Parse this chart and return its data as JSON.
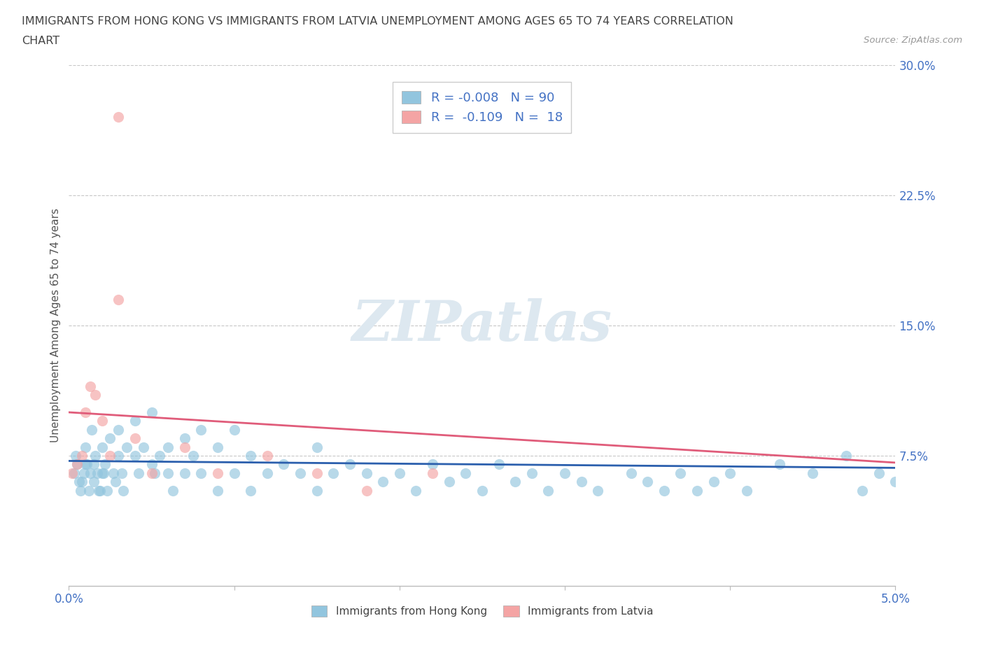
{
  "title_line1": "IMMIGRANTS FROM HONG KONG VS IMMIGRANTS FROM LATVIA UNEMPLOYMENT AMONG AGES 65 TO 74 YEARS CORRELATION",
  "title_line2": "CHART",
  "source": "Source: ZipAtlas.com",
  "ylabel": "Unemployment Among Ages 65 to 74 years",
  "xlim": [
    0.0,
    0.05
  ],
  "ylim": [
    0.0,
    0.3
  ],
  "xtick_positions": [
    0.0,
    0.01,
    0.02,
    0.03,
    0.04,
    0.05
  ],
  "xticklabels": [
    "0.0%",
    "",
    "",
    "",
    "",
    "5.0%"
  ],
  "yticks_right": [
    0.075,
    0.15,
    0.225,
    0.3
  ],
  "yticklabels_right": [
    "7.5%",
    "15.0%",
    "22.5%",
    "30.0%"
  ],
  "hk_R": -0.008,
  "hk_N": 90,
  "lv_R": -0.109,
  "lv_N": 18,
  "hk_color": "#92c5de",
  "lv_color": "#f4a4a4",
  "hk_line_color": "#2b5fad",
  "lv_line_color": "#e05c7a",
  "watermark": "ZIPatlas",
  "background_color": "#ffffff",
  "grid_color": "#c8c8c8",
  "hk_scatter_x": [
    0.0003,
    0.0005,
    0.0007,
    0.0008,
    0.001,
    0.001,
    0.0012,
    0.0013,
    0.0014,
    0.0015,
    0.0015,
    0.0016,
    0.0017,
    0.0018,
    0.002,
    0.002,
    0.0022,
    0.0023,
    0.0025,
    0.0027,
    0.003,
    0.003,
    0.0032,
    0.0033,
    0.0035,
    0.004,
    0.004,
    0.0042,
    0.0045,
    0.005,
    0.005,
    0.0052,
    0.0055,
    0.006,
    0.006,
    0.0063,
    0.007,
    0.007,
    0.0075,
    0.008,
    0.008,
    0.009,
    0.009,
    0.01,
    0.01,
    0.011,
    0.011,
    0.012,
    0.013,
    0.014,
    0.015,
    0.015,
    0.016,
    0.017,
    0.018,
    0.019,
    0.02,
    0.021,
    0.022,
    0.023,
    0.024,
    0.025,
    0.026,
    0.027,
    0.028,
    0.029,
    0.03,
    0.031,
    0.032,
    0.034,
    0.035,
    0.036,
    0.037,
    0.038,
    0.039,
    0.04,
    0.041,
    0.043,
    0.045,
    0.047,
    0.048,
    0.049,
    0.05,
    0.0004,
    0.0006,
    0.0009,
    0.0011,
    0.0019,
    0.0021,
    0.0028
  ],
  "hk_scatter_y": [
    0.065,
    0.07,
    0.055,
    0.06,
    0.08,
    0.07,
    0.055,
    0.065,
    0.09,
    0.07,
    0.06,
    0.075,
    0.065,
    0.055,
    0.08,
    0.065,
    0.07,
    0.055,
    0.085,
    0.065,
    0.09,
    0.075,
    0.065,
    0.055,
    0.08,
    0.095,
    0.075,
    0.065,
    0.08,
    0.1,
    0.07,
    0.065,
    0.075,
    0.08,
    0.065,
    0.055,
    0.085,
    0.065,
    0.075,
    0.09,
    0.065,
    0.08,
    0.055,
    0.09,
    0.065,
    0.075,
    0.055,
    0.065,
    0.07,
    0.065,
    0.08,
    0.055,
    0.065,
    0.07,
    0.065,
    0.06,
    0.065,
    0.055,
    0.07,
    0.06,
    0.065,
    0.055,
    0.07,
    0.06,
    0.065,
    0.055,
    0.065,
    0.06,
    0.055,
    0.065,
    0.06,
    0.055,
    0.065,
    0.055,
    0.06,
    0.065,
    0.055,
    0.07,
    0.065,
    0.075,
    0.055,
    0.065,
    0.06,
    0.075,
    0.06,
    0.065,
    0.07,
    0.055,
    0.065,
    0.06
  ],
  "lv_scatter_x": [
    0.0002,
    0.0005,
    0.0008,
    0.001,
    0.0013,
    0.0016,
    0.002,
    0.0025,
    0.003,
    0.004,
    0.005,
    0.007,
    0.009,
    0.012,
    0.015,
    0.018,
    0.022,
    0.003
  ],
  "lv_scatter_y": [
    0.065,
    0.07,
    0.075,
    0.1,
    0.115,
    0.11,
    0.095,
    0.075,
    0.165,
    0.085,
    0.065,
    0.08,
    0.065,
    0.075,
    0.065,
    0.055,
    0.065,
    0.27
  ]
}
